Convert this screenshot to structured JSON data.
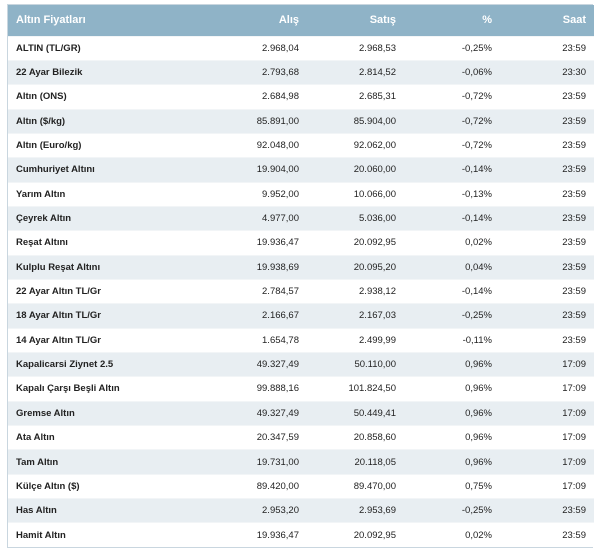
{
  "table": {
    "headers": {
      "name": "Altın Fiyatları",
      "alis": "Alış",
      "satis": "Satış",
      "pct": "%",
      "saat": "Saat"
    },
    "rows": [
      {
        "name": "ALTIN (TL/GR)",
        "alis": "2.968,04",
        "satis": "2.968,53",
        "pct": "-0,25%",
        "saat": "23:59"
      },
      {
        "name": "22 Ayar Bilezik",
        "alis": "2.793,68",
        "satis": "2.814,52",
        "pct": "-0,06%",
        "saat": "23:30"
      },
      {
        "name": "Altın (ONS)",
        "alis": "2.684,98",
        "satis": "2.685,31",
        "pct": "-0,72%",
        "saat": "23:59"
      },
      {
        "name": "Altın ($/kg)",
        "alis": "85.891,00",
        "satis": "85.904,00",
        "pct": "-0,72%",
        "saat": "23:59"
      },
      {
        "name": "Altın (Euro/kg)",
        "alis": "92.048,00",
        "satis": "92.062,00",
        "pct": "-0,72%",
        "saat": "23:59"
      },
      {
        "name": "Cumhuriyet Altını",
        "alis": "19.904,00",
        "satis": "20.060,00",
        "pct": "-0,14%",
        "saat": "23:59"
      },
      {
        "name": "Yarım Altın",
        "alis": "9.952,00",
        "satis": "10.066,00",
        "pct": "-0,13%",
        "saat": "23:59"
      },
      {
        "name": "Çeyrek Altın",
        "alis": "4.977,00",
        "satis": "5.036,00",
        "pct": "-0,14%",
        "saat": "23:59"
      },
      {
        "name": "Reşat Altını",
        "alis": "19.936,47",
        "satis": "20.092,95",
        "pct": "0,02%",
        "saat": "23:59"
      },
      {
        "name": "Kulplu Reşat Altını",
        "alis": "19.938,69",
        "satis": "20.095,20",
        "pct": "0,04%",
        "saat": "23:59"
      },
      {
        "name": "22 Ayar Altın TL/Gr",
        "alis": "2.784,57",
        "satis": "2.938,12",
        "pct": "-0,14%",
        "saat": "23:59"
      },
      {
        "name": "18 Ayar Altın TL/Gr",
        "alis": "2.166,67",
        "satis": "2.167,03",
        "pct": "-0,25%",
        "saat": "23:59"
      },
      {
        "name": "14 Ayar Altın TL/Gr",
        "alis": "1.654,78",
        "satis": "2.499,99",
        "pct": "-0,11%",
        "saat": "23:59"
      },
      {
        "name": "Kapalicarsi Ziynet 2.5",
        "alis": "49.327,49",
        "satis": "50.110,00",
        "pct": "0,96%",
        "saat": "17:09"
      },
      {
        "name": "Kapalı Çarşı Beşli Altın",
        "alis": "99.888,16",
        "satis": "101.824,50",
        "pct": "0,96%",
        "saat": "17:09"
      },
      {
        "name": "Gremse Altın",
        "alis": "49.327,49",
        "satis": "50.449,41",
        "pct": "0,96%",
        "saat": "17:09"
      },
      {
        "name": "Ata Altın",
        "alis": "20.347,59",
        "satis": "20.858,60",
        "pct": "0,96%",
        "saat": "17:09"
      },
      {
        "name": "Tam Altın",
        "alis": "19.731,00",
        "satis": "20.118,05",
        "pct": "0,96%",
        "saat": "17:09"
      },
      {
        "name": "Külçe Altın ($)",
        "alis": "89.420,00",
        "satis": "89.470,00",
        "pct": "0,75%",
        "saat": "17:09"
      },
      {
        "name": "Has Altın",
        "alis": "2.953,20",
        "satis": "2.953,69",
        "pct": "-0,25%",
        "saat": "23:59"
      },
      {
        "name": "Hamit Altın",
        "alis": "19.936,47",
        "satis": "20.092,95",
        "pct": "0,02%",
        "saat": "23:59"
      }
    ]
  }
}
